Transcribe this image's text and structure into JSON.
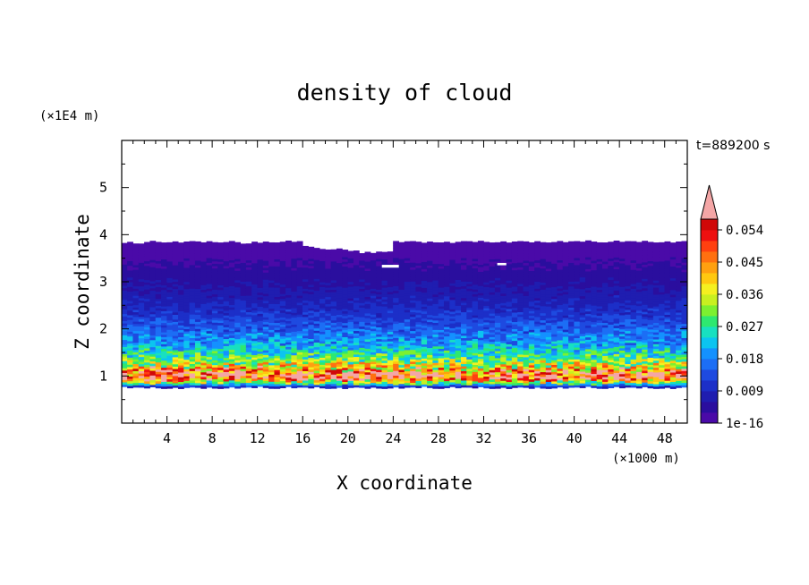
{
  "chart_data": {
    "type": "heatmap",
    "title": "density of cloud",
    "time_label": "t=889200 s",
    "xlabel": "X coordinate",
    "ylabel": "Z coordinate",
    "x_unit": "(×1000 m)",
    "y_unit": "(×1E4 m)",
    "xlim": [
      0,
      50
    ],
    "ylim": [
      0,
      6
    ],
    "x_ticks": [
      "4",
      "8",
      "12",
      "16",
      "20",
      "24",
      "28",
      "32",
      "36",
      "40",
      "44",
      "48"
    ],
    "y_ticks": [
      "1",
      "2",
      "3",
      "4",
      "5"
    ],
    "x_tick_values": [
      4,
      8,
      12,
      16,
      20,
      24,
      28,
      32,
      36,
      40,
      44,
      48
    ],
    "y_tick_values": [
      1,
      2,
      3,
      4,
      5
    ],
    "colorbar": {
      "labels": [
        "1e-16",
        "0.009",
        "0.018",
        "0.027",
        "0.036",
        "0.045",
        "0.054"
      ],
      "levels_min": 1e-16,
      "levels_max": 0.057,
      "extend": "max",
      "extend_color": "#f4a6a6",
      "colors": [
        "#4a0aa8",
        "#2a0e9e",
        "#1f1db0",
        "#1c2fc8",
        "#1e4ae0",
        "#1c6ef5",
        "#1491ff",
        "#0cc4f0",
        "#18e0c0",
        "#2ee870",
        "#7cf030",
        "#c8f020",
        "#f5f020",
        "#ffc810",
        "#ffa010",
        "#ff7010",
        "#ff4010",
        "#ee1010",
        "#d00808"
      ]
    },
    "profile": {
      "z": [
        0.75,
        0.8,
        0.85,
        0.95,
        1.0,
        1.05,
        1.15,
        1.25,
        1.4,
        1.55,
        1.7,
        1.9,
        2.1,
        2.3,
        2.6,
        2.9,
        3.2,
        3.6,
        3.85
      ],
      "density": [
        0.006,
        0.016,
        0.03,
        0.05,
        0.054,
        0.05,
        0.04,
        0.036,
        0.028,
        0.024,
        0.02,
        0.017,
        0.014,
        0.011,
        0.008,
        0.006,
        0.004,
        0.002,
        0.0001
      ]
    }
  }
}
